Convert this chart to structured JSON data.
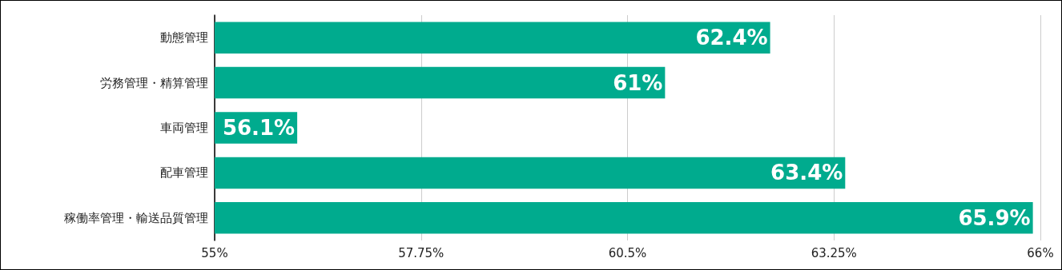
{
  "chart_data": {
    "type": "bar",
    "orientation": "horizontal",
    "categories": [
      "動態管理",
      "労務管理・精算管理",
      "車両管理",
      "配車管理",
      "稼働率管理・輸送品質管理"
    ],
    "values": [
      62.4,
      61,
      56.1,
      63.4,
      65.9
    ],
    "value_labels": [
      "62.4%",
      "61%",
      "56.1%",
      "63.4%",
      "65.9%"
    ],
    "color": "#00ab8e",
    "xlim": [
      55,
      66
    ],
    "xticks": [
      {
        "value": 55,
        "label": "55%"
      },
      {
        "value": 57.75,
        "label": "57.75%"
      },
      {
        "value": 60.5,
        "label": "60.5%"
      },
      {
        "value": 63.25,
        "label": "63.25%"
      },
      {
        "value": 66,
        "label": "66%"
      }
    ],
    "grid": "x"
  }
}
